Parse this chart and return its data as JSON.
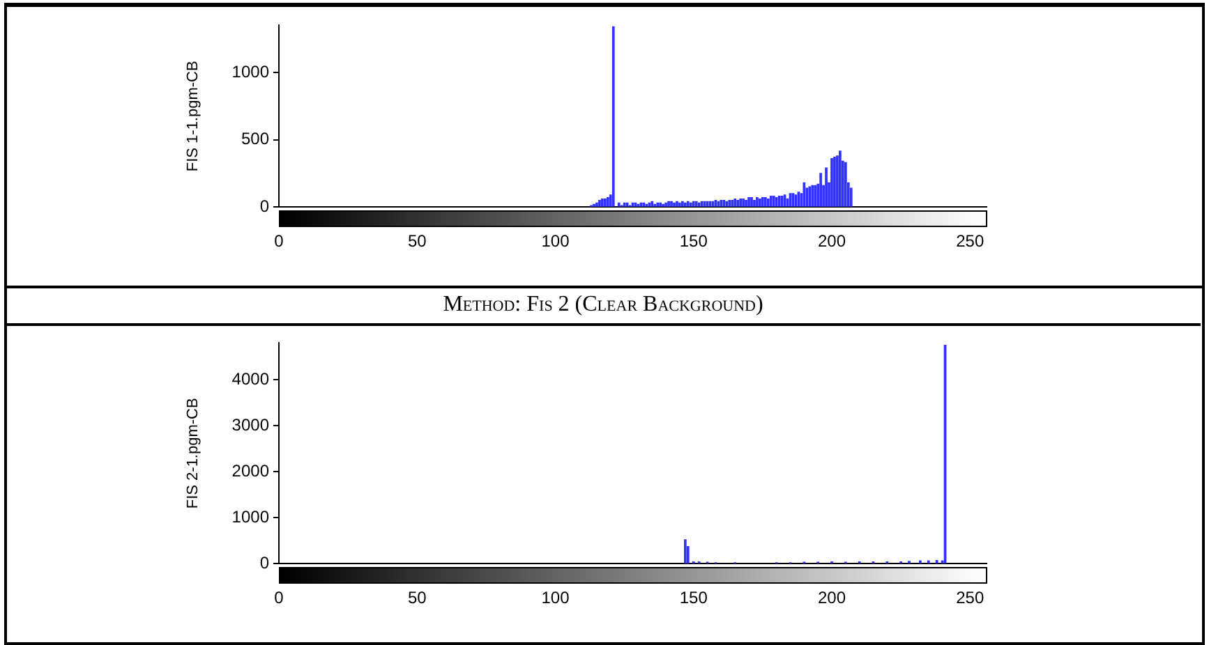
{
  "chart_data": [
    {
      "type": "bar",
      "ylabel": "FIS 1-1.pgm-CB",
      "color": "#3333ff",
      "xlim": [
        0,
        256
      ],
      "ylim": [
        0,
        1350
      ],
      "xticks": [
        0,
        50,
        100,
        150,
        200,
        250
      ],
      "yticks": [
        0,
        500,
        1000
      ],
      "x": [
        113,
        114,
        115,
        116,
        117,
        118,
        119,
        120,
        121,
        123,
        124,
        125,
        126,
        127,
        128,
        129,
        130,
        131,
        132,
        133,
        134,
        135,
        136,
        137,
        138,
        139,
        140,
        141,
        142,
        143,
        144,
        145,
        146,
        147,
        148,
        149,
        150,
        151,
        152,
        153,
        154,
        155,
        156,
        157,
        158,
        159,
        160,
        161,
        162,
        163,
        164,
        165,
        166,
        167,
        168,
        169,
        170,
        171,
        172,
        173,
        174,
        175,
        176,
        177,
        178,
        179,
        180,
        181,
        182,
        183,
        184,
        185,
        186,
        187,
        188,
        189,
        190,
        191,
        192,
        193,
        194,
        195,
        196,
        197,
        198,
        199,
        200,
        201,
        202,
        203,
        204,
        205,
        206,
        207
      ],
      "values": [
        10,
        20,
        30,
        50,
        60,
        60,
        70,
        90,
        1340,
        30,
        10,
        30,
        30,
        10,
        30,
        30,
        20,
        30,
        30,
        20,
        30,
        40,
        20,
        30,
        30,
        20,
        30,
        40,
        40,
        30,
        40,
        30,
        40,
        30,
        40,
        30,
        40,
        40,
        30,
        40,
        40,
        40,
        40,
        40,
        50,
        40,
        50,
        50,
        40,
        50,
        50,
        60,
        50,
        60,
        60,
        50,
        70,
        70,
        50,
        70,
        60,
        70,
        70,
        60,
        80,
        80,
        70,
        80,
        80,
        90,
        60,
        100,
        100,
        90,
        110,
        100,
        180,
        140,
        150,
        160,
        160,
        170,
        250,
        160,
        290,
        180,
        360,
        370,
        380,
        415,
        340,
        330,
        180,
        140
      ]
    },
    {
      "type": "bar",
      "title": "Method: Fis 2 (Clear Background)",
      "ylabel": "FIS 2-1.pgm-CB",
      "color": "#3333ff",
      "xlim": [
        0,
        256
      ],
      "ylim": [
        0,
        4800
      ],
      "xticks": [
        0,
        50,
        100,
        150,
        200,
        250
      ],
      "yticks": [
        0,
        1000,
        2000,
        3000,
        4000
      ],
      "x": [
        147,
        148,
        150,
        152,
        155,
        158,
        165,
        180,
        185,
        190,
        195,
        200,
        205,
        210,
        215,
        220,
        225,
        228,
        232,
        235,
        238,
        240,
        241
      ],
      "values": [
        520,
        370,
        40,
        40,
        30,
        20,
        20,
        20,
        20,
        30,
        30,
        40,
        30,
        40,
        40,
        40,
        40,
        50,
        60,
        60,
        70,
        60,
        4750
      ]
    }
  ]
}
